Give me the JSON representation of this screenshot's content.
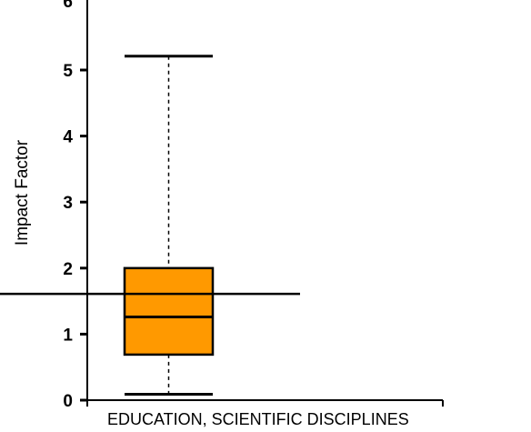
{
  "chart_data": {
    "type": "box",
    "title": "",
    "xlabel": "",
    "ylabel": "Impact Factor",
    "ylim": [
      0,
      5.9
    ],
    "yticks": [
      0,
      1,
      2,
      3,
      4,
      5
    ],
    "categories": [
      "EDUCATION, SCIENTIFIC DISCIPLINES"
    ],
    "boxes": [
      {
        "category": "EDUCATION, SCIENTIFIC DISCIPLINES",
        "min": 0.09,
        "q1": 0.69,
        "median": 1.26,
        "q3": 2.0,
        "max": 5.21
      }
    ],
    "reference_line": 1.61,
    "colors": {
      "box_fill": "#ff9900",
      "stroke": "#000000"
    },
    "grid": false,
    "legend": "none"
  }
}
